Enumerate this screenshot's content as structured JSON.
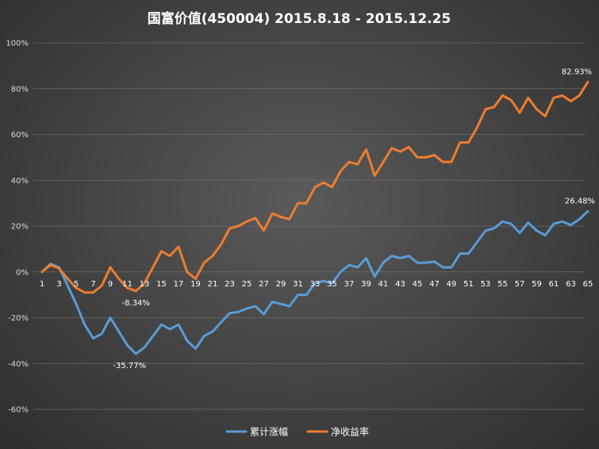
{
  "chart_data": {
    "type": "line",
    "title": "国富价值(450004)  2015.8.18 - 2015.12.25",
    "xlabel": "",
    "ylabel": "",
    "ylim": [
      -60,
      100
    ],
    "yticks": [
      100,
      80,
      60,
      40,
      20,
      0,
      -20,
      -40,
      -60
    ],
    "ytick_labels": [
      "100%",
      "80%",
      "60%",
      "40%",
      "20%",
      "0%",
      "-20%",
      "-40%",
      "-60%"
    ],
    "x": [
      1,
      2,
      3,
      4,
      5,
      6,
      7,
      8,
      9,
      10,
      11,
      12,
      13,
      14,
      15,
      16,
      17,
      18,
      19,
      20,
      21,
      22,
      23,
      24,
      25,
      26,
      27,
      28,
      29,
      30,
      31,
      32,
      33,
      34,
      35,
      36,
      37,
      38,
      39,
      40,
      41,
      42,
      43,
      44,
      45,
      46,
      47,
      48,
      49,
      50,
      51,
      52,
      53,
      54,
      55,
      56,
      57,
      58,
      59,
      60,
      61,
      62,
      63,
      64,
      65
    ],
    "xtick_labels": [
      "1",
      "3",
      "5",
      "7",
      "9",
      "11",
      "13",
      "15",
      "17",
      "19",
      "21",
      "23",
      "25",
      "27",
      "29",
      "31",
      "33",
      "35",
      "37",
      "39",
      "41",
      "43",
      "45",
      "47",
      "49",
      "51",
      "53",
      "55",
      "57",
      "59",
      "61",
      "63",
      "65"
    ],
    "grid": true,
    "legend_position": "bottom",
    "series": [
      {
        "name": "累计涨幅",
        "color": "#5b9bd5",
        "values": [
          0,
          3.5,
          2,
          -6,
          -14,
          -23,
          -29,
          -27,
          -20,
          -26,
          -32,
          -35.77,
          -33,
          -28,
          -23,
          -25,
          -23,
          -30,
          -33.5,
          -28,
          -26,
          -22,
          -18,
          -17.5,
          -16,
          -15,
          -18.5,
          -13,
          -14,
          -15,
          -10,
          -10,
          -5,
          -4,
          -5,
          0,
          3,
          2,
          6,
          -2,
          4,
          7,
          6,
          7,
          4,
          4,
          4.5,
          2,
          2,
          8,
          8,
          13,
          18,
          19,
          22,
          21,
          17,
          21.5,
          18,
          16,
          21,
          22,
          20.5,
          23,
          26.48
        ]
      },
      {
        "name": "净收益率",
        "color": "#ed7d31",
        "values": [
          0,
          3,
          1.5,
          -3,
          -7,
          -9,
          -9,
          -6,
          2,
          -3,
          -7,
          -8.34,
          -5,
          2,
          9,
          7,
          11,
          0,
          -3,
          4,
          7,
          12,
          19,
          20,
          22,
          23.5,
          18,
          25.5,
          24,
          23,
          30,
          30,
          37,
          39,
          37,
          44,
          48,
          47,
          53.5,
          42,
          48,
          54,
          52.5,
          54.5,
          50,
          50,
          51,
          48,
          48,
          56.5,
          56.5,
          63,
          71,
          72,
          77,
          75,
          69.5,
          76,
          71,
          68,
          76,
          77,
          74.5,
          77,
          82.93
        ]
      }
    ],
    "annotations": [
      {
        "series": 0,
        "x": 12,
        "label": "-35.77%"
      },
      {
        "series": 1,
        "x": 12,
        "label": "-8.34%"
      },
      {
        "series": 0,
        "x": 65,
        "label": "26.48%"
      },
      {
        "series": 1,
        "x": 65,
        "label": "82.93%"
      }
    ]
  }
}
